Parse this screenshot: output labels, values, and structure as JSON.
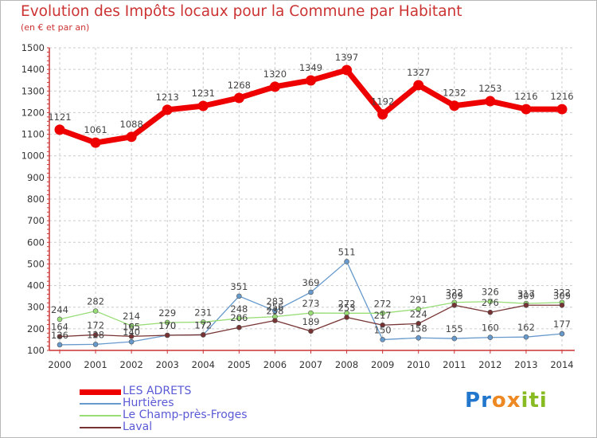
{
  "title": "Evolution des Impôts locaux pour la Commune par Habitant",
  "subtitle": "(en € et par an)",
  "logo": {
    "text": "Proxiti",
    "colors": [
      "#2277cc",
      "#2277cc",
      "#ee8822",
      "#ee8822",
      "#88bb22",
      "#88bb22",
      "#88bb22"
    ]
  },
  "chart_data": {
    "type": "line",
    "x": [
      "2000",
      "2001",
      "2002",
      "2003",
      "2004",
      "2005",
      "2006",
      "2007",
      "2008",
      "2009",
      "2010",
      "2011",
      "2012",
      "2013",
      "2014"
    ],
    "ylim": [
      100,
      1500
    ],
    "yticks": [
      100,
      200,
      300,
      400,
      500,
      600,
      700,
      800,
      900,
      1000,
      1100,
      1200,
      1300,
      1400,
      1500
    ],
    "grid": true,
    "legend_position": "bottom-left",
    "series": [
      {
        "name": "LES ADRETS",
        "color": "#ee0000",
        "values": [
          1121,
          1061,
          1088,
          1213,
          1231,
          1268,
          1320,
          1349,
          1397,
          1192,
          1327,
          1232,
          1253,
          1216,
          1216
        ]
      },
      {
        "name": "Hurtières",
        "color": "#6699cc",
        "values": [
          126,
          128,
          140,
          170,
          172,
          351,
          283,
          369,
          511,
          150,
          158,
          155,
          160,
          162,
          177
        ]
      },
      {
        "name": "Le Champ-près-Froges",
        "color": "#99dd77",
        "values": [
          244,
          282,
          214,
          229,
          231,
          248,
          256,
          273,
          272,
          272,
          291,
          322,
          326,
          317,
          322
        ]
      },
      {
        "name": "Laval",
        "color": "#773333",
        "values": [
          164,
          172,
          165,
          170,
          172,
          206,
          238,
          189,
          253,
          217,
          224,
          309,
          276,
          309,
          309
        ]
      }
    ]
  }
}
